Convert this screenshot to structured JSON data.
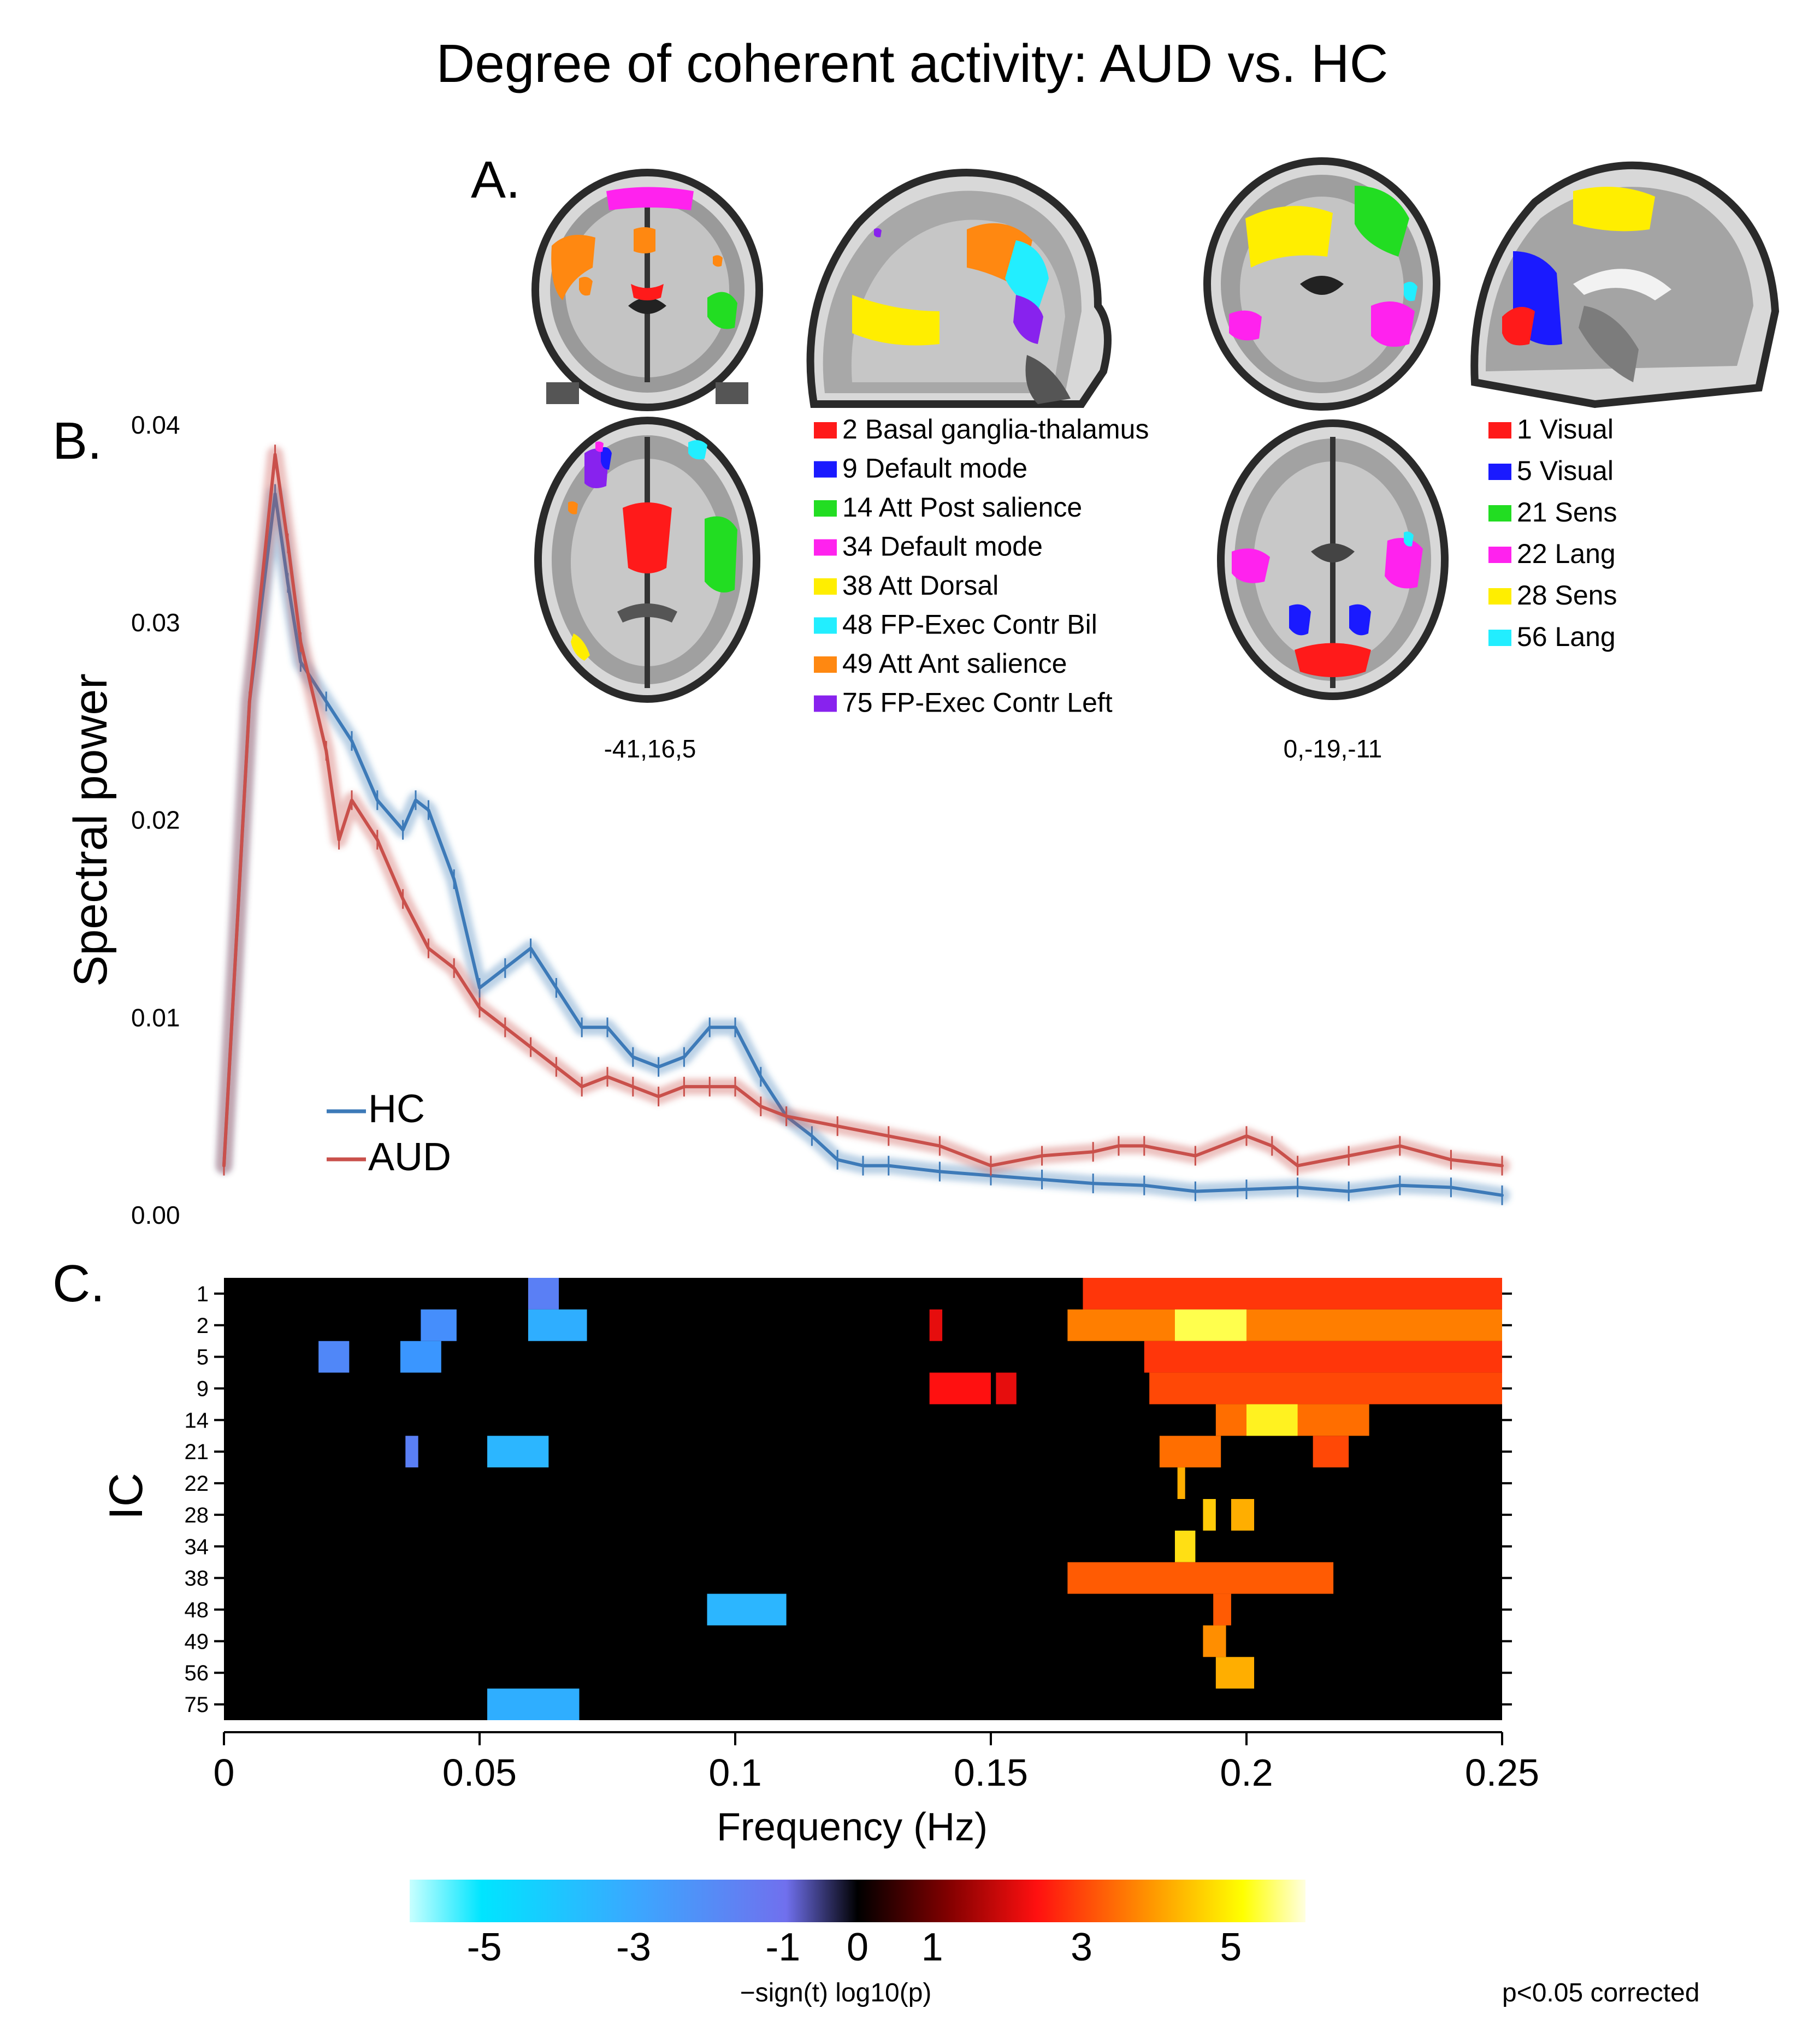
{
  "figure": {
    "title": "Degree of coherent activity: AUD vs. HC",
    "panels": {
      "a": "A.",
      "b": "B.",
      "c": "C."
    }
  },
  "brain": {
    "coords_left": "-41,16,5",
    "coords_right": "0,-19,-11",
    "legend_left": [
      {
        "label": "2 Basal ganglia-thalamus",
        "color": "#ff1a1a"
      },
      {
        "label": "9 Default mode",
        "color": "#1a1aff"
      },
      {
        "label": "14 Att Post salience",
        "color": "#22dd22"
      },
      {
        "label": "34 Default mode",
        "color": "#ff22ee"
      },
      {
        "label": "38 Att Dorsal",
        "color": "#ffee00"
      },
      {
        "label": "48 FP-Exec Contr Bil",
        "color": "#22eeff"
      },
      {
        "label": "49 Att Ant salience",
        "color": "#ff8811"
      },
      {
        "label": "75 FP-Exec Contr Left",
        "color": "#8822ee"
      }
    ],
    "legend_right": [
      {
        "label": "1 Visual",
        "color": "#ff1a1a"
      },
      {
        "label": "5 Visual",
        "color": "#1a1aff"
      },
      {
        "label": "21 Sens",
        "color": "#22dd22"
      },
      {
        "label": "22 Lang",
        "color": "#ff22ee"
      },
      {
        "label": "28 Sens",
        "color": "#ffee00"
      },
      {
        "label": "56 Lang",
        "color": "#22eeff"
      }
    ]
  },
  "chart_data": [
    {
      "type": "line",
      "ylabel": "Spectral power",
      "ylim": [
        0,
        0.04
      ],
      "yticks": [
        "0.00",
        "0.01",
        "0.02",
        "0.03",
        "0.04"
      ],
      "xlim": [
        0,
        0.25
      ],
      "legend_position": "bottom-left",
      "series": [
        {
          "name": "HC",
          "color": "#3d7ab8",
          "x": [
            0,
            0.005,
            0.01,
            0.0125,
            0.015,
            0.02,
            0.025,
            0.03,
            0.035,
            0.0375,
            0.04,
            0.045,
            0.05,
            0.055,
            0.06,
            0.065,
            0.07,
            0.075,
            0.08,
            0.085,
            0.09,
            0.095,
            0.1,
            0.105,
            0.11,
            0.115,
            0.12,
            0.125,
            0.13,
            0.14,
            0.15,
            0.16,
            0.17,
            0.18,
            0.19,
            0.2,
            0.21,
            0.22,
            0.23,
            0.24,
            0.25
          ],
          "y": [
            0.0025,
            0.026,
            0.0365,
            0.032,
            0.028,
            0.026,
            0.024,
            0.021,
            0.0195,
            0.021,
            0.0205,
            0.017,
            0.0115,
            0.0125,
            0.0135,
            0.0115,
            0.0095,
            0.0095,
            0.008,
            0.0075,
            0.008,
            0.0095,
            0.0095,
            0.007,
            0.005,
            0.004,
            0.0028,
            0.0025,
            0.0025,
            0.0022,
            0.002,
            0.0018,
            0.0016,
            0.0015,
            0.0012,
            0.0013,
            0.0014,
            0.0012,
            0.0015,
            0.0014,
            0.001
          ]
        },
        {
          "name": "AUD",
          "color": "#c9504b",
          "x": [
            0,
            0.005,
            0.01,
            0.0125,
            0.015,
            0.02,
            0.0225,
            0.025,
            0.03,
            0.035,
            0.04,
            0.045,
            0.05,
            0.055,
            0.06,
            0.065,
            0.07,
            0.075,
            0.08,
            0.085,
            0.09,
            0.095,
            0.1,
            0.105,
            0.11,
            0.12,
            0.13,
            0.14,
            0.15,
            0.16,
            0.17,
            0.175,
            0.18,
            0.19,
            0.2,
            0.205,
            0.21,
            0.22,
            0.23,
            0.24,
            0.25
          ],
          "y": [
            0.0025,
            0.026,
            0.0385,
            0.034,
            0.029,
            0.0235,
            0.019,
            0.021,
            0.019,
            0.016,
            0.0135,
            0.0125,
            0.0105,
            0.0095,
            0.0085,
            0.0075,
            0.0065,
            0.007,
            0.0065,
            0.006,
            0.0065,
            0.0065,
            0.0065,
            0.0055,
            0.005,
            0.0045,
            0.004,
            0.0035,
            0.0025,
            0.003,
            0.0032,
            0.0035,
            0.0035,
            0.003,
            0.004,
            0.0035,
            0.0025,
            0.003,
            0.0035,
            0.0028,
            0.0025
          ]
        }
      ]
    },
    {
      "type": "heatmap",
      "xlabel": "Frequency (Hz)",
      "ylabel": "IC",
      "xlim": [
        0,
        0.25
      ],
      "xticks": [
        "0",
        "0.05",
        "0.1",
        "0.15",
        "0.2",
        "0.25"
      ],
      "rows": [
        "1",
        "2",
        "5",
        "9",
        "14",
        "21",
        "22",
        "28",
        "34",
        "38",
        "48",
        "49",
        "56",
        "75"
      ],
      "cells": [
        {
          "row": "1",
          "x0": 0.0595,
          "x1": 0.0655,
          "v": -2.4
        },
        {
          "row": "2",
          "x0": 0.0385,
          "x1": 0.0455,
          "v": -2.8
        },
        {
          "row": "2",
          "x0": 0.0595,
          "x1": 0.071,
          "v": -3.6
        },
        {
          "row": "5",
          "x0": 0.0185,
          "x1": 0.0245,
          "v": -2.6
        },
        {
          "row": "5",
          "x0": 0.0345,
          "x1": 0.0425,
          "v": -3.0
        },
        {
          "row": "21",
          "x0": 0.0355,
          "x1": 0.038,
          "v": -2.4
        },
        {
          "row": "21",
          "x0": 0.0515,
          "x1": 0.0635,
          "v": -3.8
        },
        {
          "row": "48",
          "x0": 0.0945,
          "x1": 0.11,
          "v": -3.8
        },
        {
          "row": "75",
          "x0": 0.0515,
          "x1": 0.0695,
          "v": -3.6
        },
        {
          "row": "1",
          "x0": 0.168,
          "x1": 0.25,
          "v": 2.4
        },
        {
          "row": "2",
          "x0": 0.138,
          "x1": 0.1405,
          "v": 1.8
        },
        {
          "row": "2",
          "x0": 0.165,
          "x1": 0.25,
          "v": 3.2
        },
        {
          "row": "2",
          "x0": 0.186,
          "x1": 0.2,
          "v": 5.2
        },
        {
          "row": "5",
          "x0": 0.18,
          "x1": 0.25,
          "v": 2.4
        },
        {
          "row": "9",
          "x0": 0.138,
          "x1": 0.15,
          "v": 2.0
        },
        {
          "row": "9",
          "x0": 0.151,
          "x1": 0.155,
          "v": 1.8
        },
        {
          "row": "9",
          "x0": 0.181,
          "x1": 0.25,
          "v": 2.6
        },
        {
          "row": "14",
          "x0": 0.194,
          "x1": 0.224,
          "v": 3.0
        },
        {
          "row": "14",
          "x0": 0.2,
          "x1": 0.21,
          "v": 4.8
        },
        {
          "row": "21",
          "x0": 0.183,
          "x1": 0.195,
          "v": 3.0
        },
        {
          "row": "21",
          "x0": 0.213,
          "x1": 0.22,
          "v": 2.6
        },
        {
          "row": "22",
          "x0": 0.1865,
          "x1": 0.188,
          "v": 3.8
        },
        {
          "row": "28",
          "x0": 0.1915,
          "x1": 0.194,
          "v": 4.2
        },
        {
          "row": "28",
          "x0": 0.197,
          "x1": 0.2015,
          "v": 3.8
        },
        {
          "row": "34",
          "x0": 0.186,
          "x1": 0.19,
          "v": 4.5
        },
        {
          "row": "38",
          "x0": 0.165,
          "x1": 0.217,
          "v": 2.8
        },
        {
          "row": "48",
          "x0": 0.1935,
          "x1": 0.197,
          "v": 2.8
        },
        {
          "row": "49",
          "x0": 0.1915,
          "x1": 0.196,
          "v": 3.4
        },
        {
          "row": "56",
          "x0": 0.194,
          "x1": 0.2015,
          "v": 3.8
        }
      ]
    },
    {
      "type": "colorbar",
      "range": [
        -6,
        6
      ],
      "ticks": [
        "-5",
        "-3",
        "-1",
        "0",
        "1",
        "3",
        "5"
      ],
      "label": "−sign(t) log10(p)"
    }
  ],
  "note": "p<0.05 corrected"
}
